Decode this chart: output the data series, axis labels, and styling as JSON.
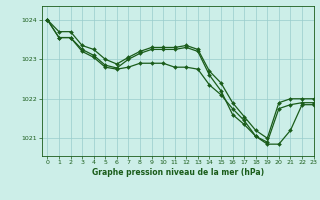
{
  "title": "Graphe pression niveau de la mer (hPa)",
  "bg_color": "#cceee8",
  "grid_color": "#99cccc",
  "line_color": "#1a5c1a",
  "marker_color": "#1a5c1a",
  "xlim": [
    -0.5,
    23
  ],
  "ylim": [
    1020.55,
    1024.35
  ],
  "yticks": [
    1021,
    1022,
    1023,
    1024
  ],
  "xticks": [
    0,
    1,
    2,
    3,
    4,
    5,
    6,
    7,
    8,
    9,
    10,
    11,
    12,
    13,
    14,
    15,
    16,
    17,
    18,
    19,
    20,
    21,
    22,
    23
  ],
  "series": [
    {
      "x": [
        0,
        1,
        2,
        3,
        4,
        5,
        6,
        7,
        8,
        9,
        10,
        11,
        12,
        13,
        14,
        15,
        16,
        17,
        18,
        19,
        20,
        21,
        22,
        23
      ],
      "y": [
        1024.0,
        1023.55,
        1023.55,
        1023.2,
        1023.05,
        1022.8,
        1022.75,
        1022.8,
        1022.9,
        1022.9,
        1022.9,
        1022.8,
        1022.8,
        1022.75,
        1022.35,
        1022.1,
        1021.75,
        1021.45,
        1021.05,
        1020.85,
        1020.85,
        1021.2,
        1021.85,
        1021.85
      ],
      "lw": 0.9,
      "ms": 2.0
    },
    {
      "x": [
        0,
        1,
        2,
        3,
        4,
        5,
        6,
        7,
        8,
        9,
        10,
        11,
        12,
        13,
        14,
        15,
        16,
        17,
        18,
        19,
        20,
        21,
        22,
        23
      ],
      "y": [
        1024.0,
        1023.55,
        1023.55,
        1023.25,
        1023.1,
        1022.85,
        1022.78,
        1023.0,
        1023.15,
        1023.25,
        1023.25,
        1023.25,
        1023.3,
        1023.2,
        1022.6,
        1022.2,
        1021.6,
        1021.35,
        1021.05,
        1020.9,
        1021.75,
        1021.85,
        1021.9,
        1021.9
      ],
      "lw": 0.9,
      "ms": 2.0
    },
    {
      "x": [
        0,
        1,
        2,
        3,
        4,
        5,
        6,
        7,
        8,
        9,
        10,
        11,
        12,
        13,
        14,
        15,
        16,
        17,
        18,
        19,
        20,
        21,
        22,
        23
      ],
      "y": [
        1024.0,
        1023.7,
        1023.7,
        1023.35,
        1023.25,
        1023.0,
        1022.88,
        1023.05,
        1023.2,
        1023.3,
        1023.3,
        1023.3,
        1023.35,
        1023.25,
        1022.7,
        1022.4,
        1021.9,
        1021.55,
        1021.2,
        1021.0,
        1021.9,
        1022.0,
        1022.0,
        1022.0
      ],
      "lw": 0.9,
      "ms": 2.0
    }
  ]
}
